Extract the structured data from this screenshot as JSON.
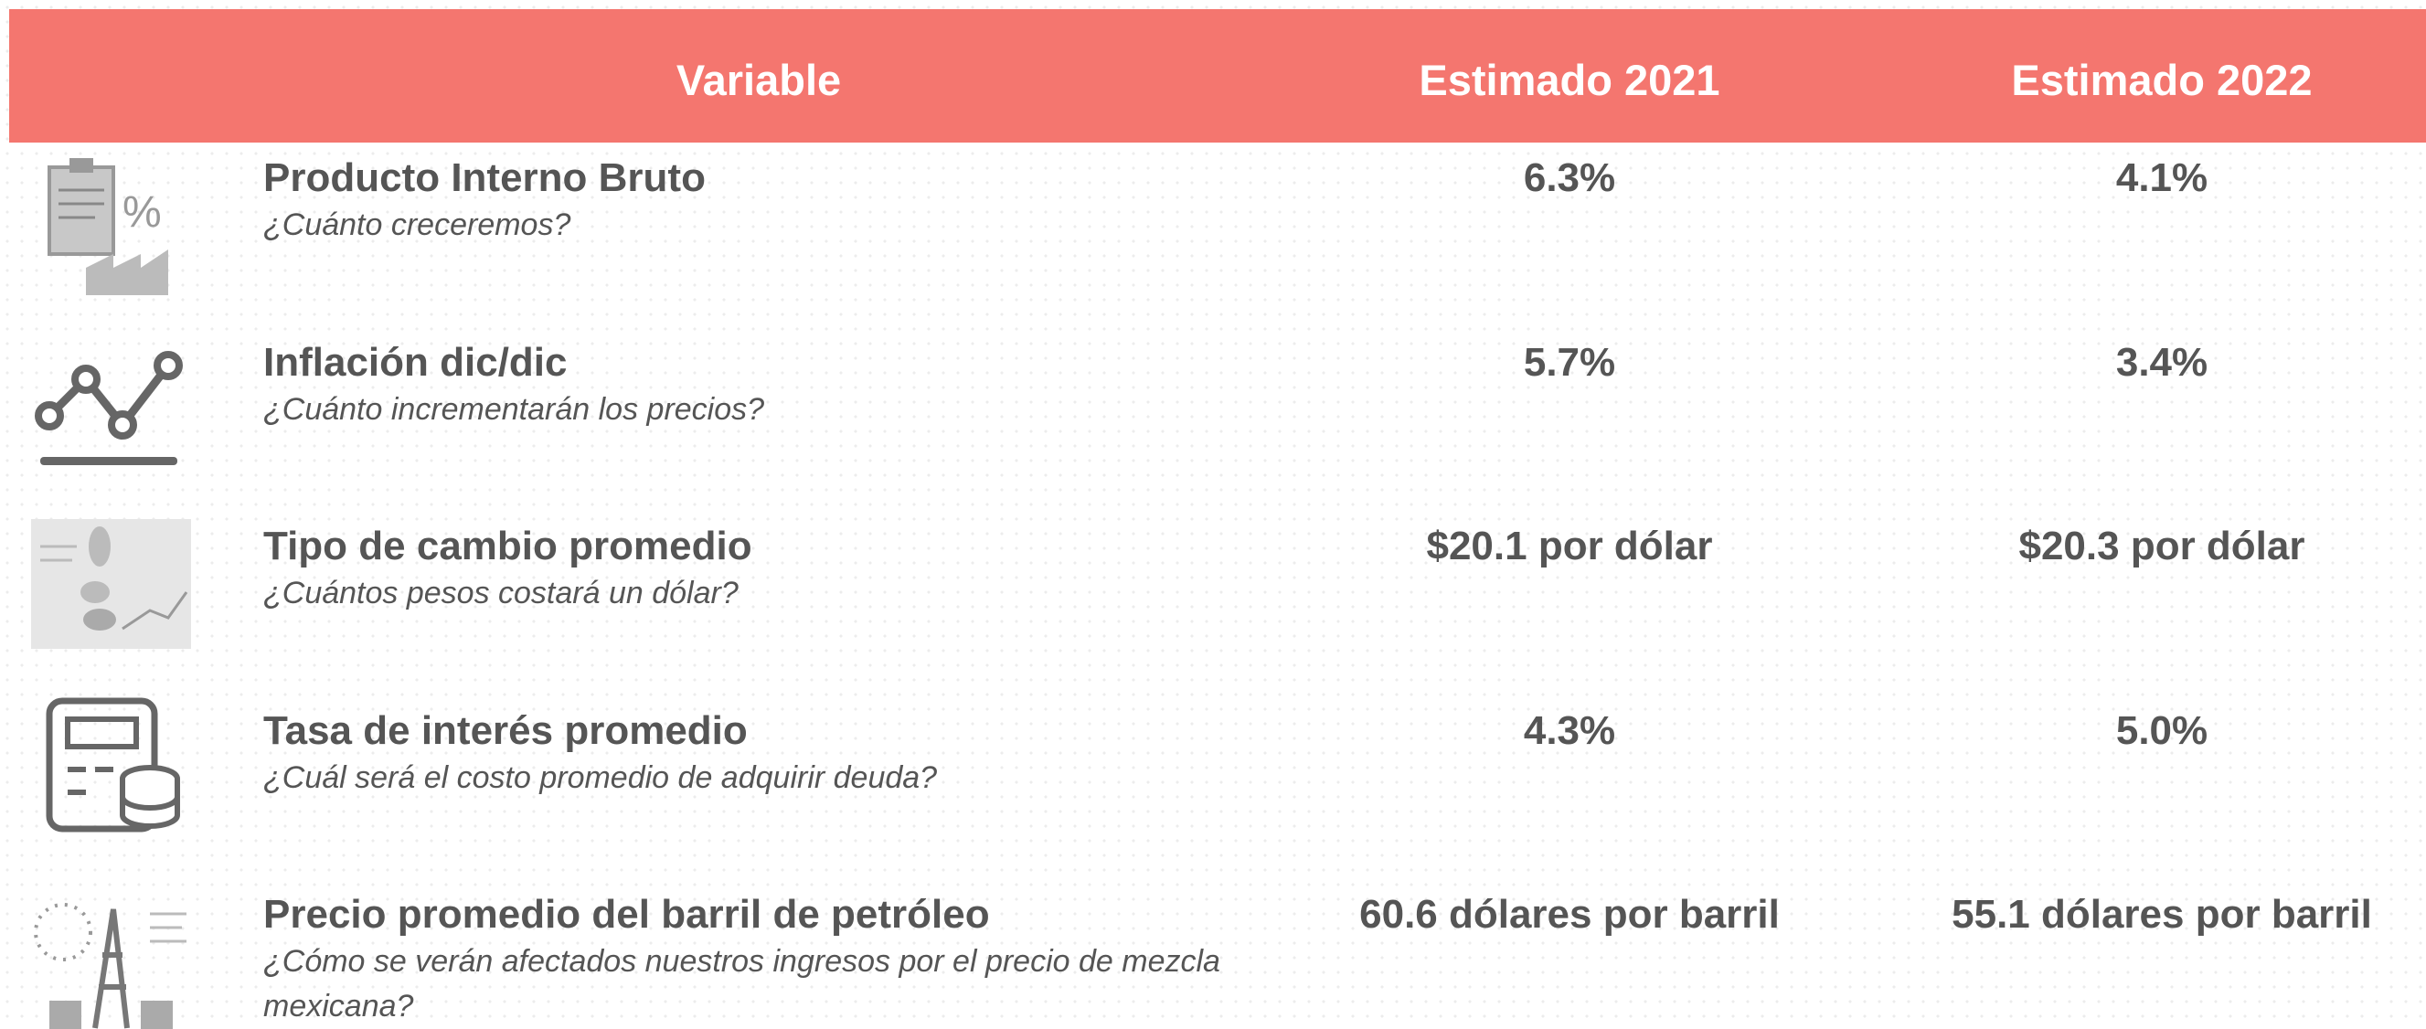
{
  "header": {
    "columns": [
      "Variable",
      "Estimado 2021",
      "Estimado 2022"
    ]
  },
  "rows": [
    {
      "title": "Producto Interno Bruto",
      "subtitle": "¿Cuánto creceremos?",
      "estimate_2021": "6.3%",
      "estimate_2022": "4.1%"
    },
    {
      "title": "Inflación dic/dic",
      "subtitle": "¿Cuánto incrementarán los precios?",
      "estimate_2021": "5.7%",
      "estimate_2022": "3.4%"
    },
    {
      "title": "Tipo de cambio promedio",
      "subtitle": "¿Cuántos pesos costará un dólar?",
      "estimate_2021": "$20.1 por dólar",
      "estimate_2022": "$20.3 por dólar"
    },
    {
      "title": "Tasa de interés promedio",
      "subtitle": "¿Cuál será el costo promedio de adquirir deuda?",
      "estimate_2021": "4.3%",
      "estimate_2022": "5.0%"
    },
    {
      "title": "Precio promedio del barril de petróleo",
      "subtitle": "¿Cómo se verán afectados nuestros ingresos por el precio de mezcla mexicana?",
      "estimate_2021": "60.6 dólares por barril",
      "estimate_2022": "55.1 dólares por barril"
    }
  ]
}
